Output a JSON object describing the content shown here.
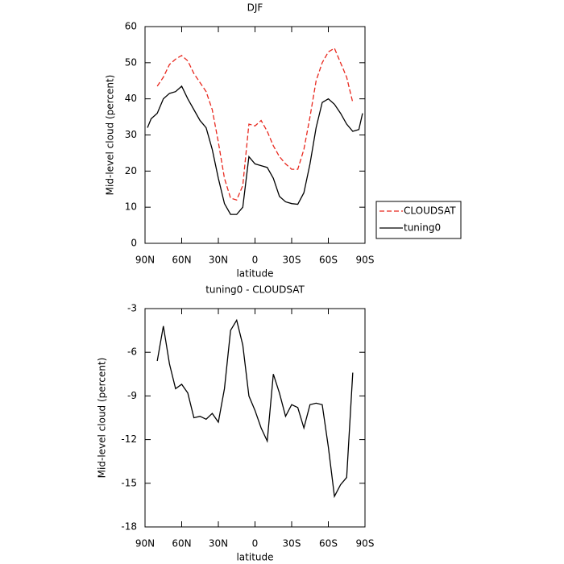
{
  "chart_data": [
    {
      "type": "line",
      "title": "DJF",
      "xlabel": "latitude",
      "ylabel": "Mid-level cloud (percent)",
      "x": [
        88,
        85,
        80,
        75,
        70,
        65,
        60,
        55,
        50,
        45,
        40,
        35,
        30,
        25,
        20,
        15,
        10,
        5,
        0,
        -5,
        -10,
        -15,
        -20,
        -25,
        -30,
        -35,
        -40,
        -45,
        -50,
        -55,
        -60,
        -65,
        -70,
        -75,
        -80,
        -85,
        -88
      ],
      "series": [
        {
          "name": "CLOUDSAT",
          "color": "#e8281e",
          "dash": "dashed",
          "values": [
            null,
            null,
            43.5,
            46,
            49.5,
            51,
            52,
            50.5,
            47,
            44.5,
            42,
            37,
            28,
            18,
            12.5,
            12,
            16,
            33,
            32.5,
            34,
            31,
            27,
            24,
            22,
            20.5,
            20.5,
            26,
            35,
            45,
            50,
            53,
            54,
            50,
            46,
            39,
            null,
            null
          ]
        },
        {
          "name": "tuning0",
          "color": "#000000",
          "dash": "solid",
          "values": [
            32,
            34.5,
            36,
            40,
            41.5,
            42,
            43.5,
            40,
            37,
            34,
            32,
            26,
            18,
            11,
            8,
            8,
            10,
            24,
            22,
            21.5,
            21,
            18,
            13,
            11.5,
            11,
            10.8,
            14,
            22,
            32,
            39,
            40,
            38.5,
            36,
            33,
            31,
            31.5,
            36
          ]
        }
      ],
      "xlim": [
        90,
        -90
      ],
      "xticks": [
        {
          "value": 90,
          "label": "90N"
        },
        {
          "value": 60,
          "label": "60N"
        },
        {
          "value": 30,
          "label": "30N"
        },
        0,
        {
          "value": -30,
          "label": "30S"
        },
        {
          "value": -60,
          "label": "60S"
        },
        {
          "value": -90,
          "label": "90S"
        }
      ],
      "ylim": [
        0,
        60
      ],
      "yticks": [
        0,
        10,
        20,
        30,
        40,
        50,
        60
      ],
      "grid": false,
      "legend": "right"
    },
    {
      "type": "line",
      "title": "tuning0 - CLOUDSAT",
      "xlabel": "latitude",
      "ylabel": "Mid-level cloud (percent)",
      "x": [
        80,
        75,
        70,
        65,
        60,
        55,
        50,
        45,
        40,
        35,
        30,
        25,
        20,
        15,
        10,
        5,
        0,
        -5,
        -10,
        -15,
        -20,
        -25,
        -30,
        -35,
        -40,
        -45,
        -50,
        -55,
        -60,
        -65,
        -70,
        -75,
        -80
      ],
      "series": [
        {
          "name": "tuning0 - CLOUDSAT",
          "color": "#000000",
          "dash": "solid",
          "values": [
            -6.6,
            -4.2,
            -6.8,
            -8.5,
            -8.2,
            -8.8,
            -10.5,
            -10.4,
            -10.6,
            -10.2,
            -10.8,
            -8.5,
            -4.5,
            -3.8,
            -5.5,
            -9.0,
            -10.0,
            -11.2,
            -12.1,
            -7.5,
            -8.8,
            -10.4,
            -9.6,
            -9.8,
            -11.2,
            -9.6,
            -9.5,
            -9.6,
            -12.5,
            -15.9,
            -15.1,
            -14.6,
            -7.4
          ]
        }
      ],
      "xlim": [
        90,
        -90
      ],
      "xticks": [
        {
          "value": 90,
          "label": "90N"
        },
        {
          "value": 60,
          "label": "60N"
        },
        {
          "value": 30,
          "label": "30N"
        },
        0,
        {
          "value": -30,
          "label": "30S"
        },
        {
          "value": -60,
          "label": "60S"
        },
        {
          "value": -90,
          "label": "90S"
        }
      ],
      "ylim": [
        -18,
        -3
      ],
      "yticks": [
        -18,
        -15,
        -12,
        -9,
        -6,
        -3
      ],
      "grid": false
    }
  ]
}
